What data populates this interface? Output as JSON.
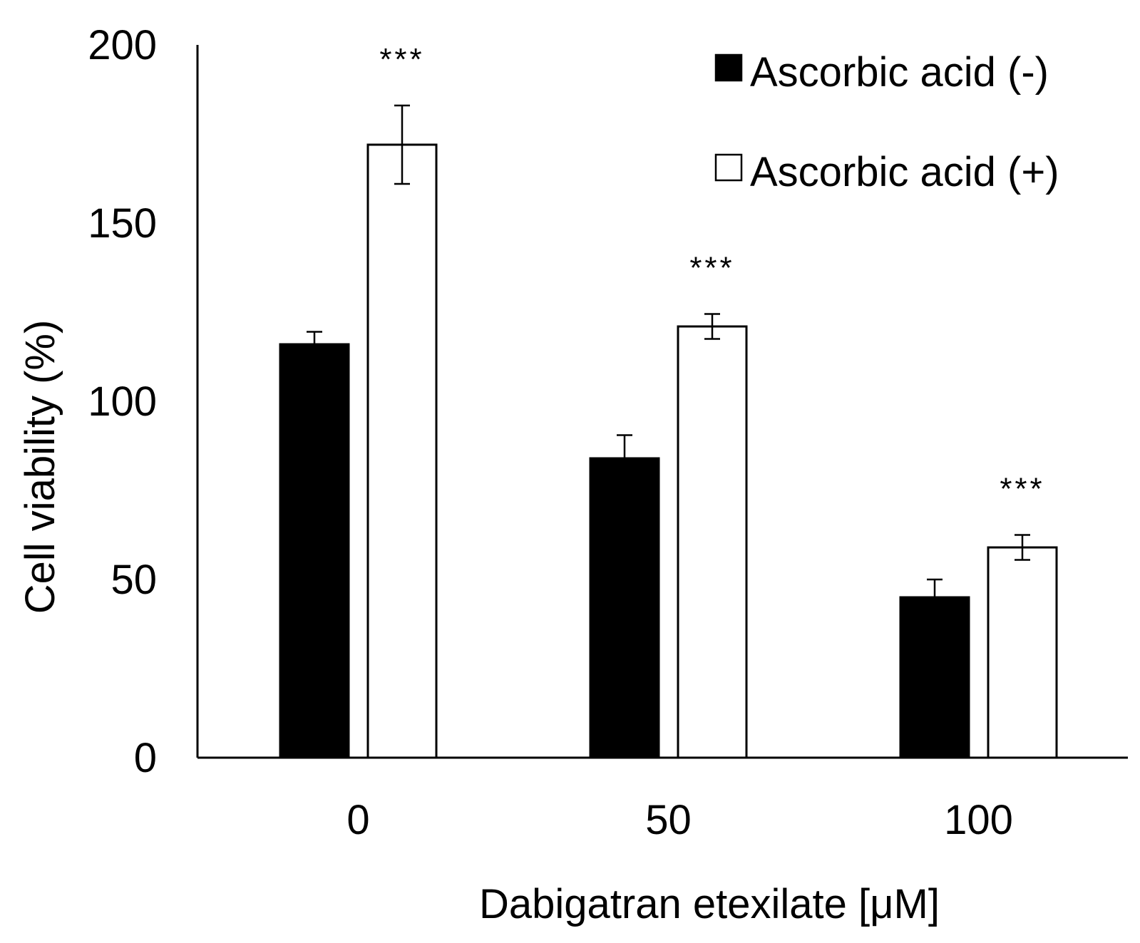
{
  "chart_data": {
    "type": "bar",
    "title": "",
    "xlabel": "Dabigatran etexilate [μM]",
    "ylabel": "Cell viability (%)",
    "ylim": [
      0,
      200
    ],
    "yticks": [
      0,
      50,
      100,
      150,
      200
    ],
    "grid": false,
    "legend_position": "top-right",
    "categories": [
      "0",
      "50",
      "100"
    ],
    "series": [
      {
        "name": "Ascorbic acid (-)",
        "fill": "#000000",
        "values": [
          116,
          84,
          45
        ],
        "errors": [
          3.5,
          6.5,
          5
        ]
      },
      {
        "name": "Ascorbic acid (+)",
        "fill": "#ffffff",
        "values": [
          172,
          121,
          59
        ],
        "errors": [
          11,
          3.5,
          3.5
        ]
      }
    ],
    "annotations": [
      {
        "category_index": 0,
        "series_index": 1,
        "text": "***"
      },
      {
        "category_index": 1,
        "series_index": 1,
        "text": "***"
      },
      {
        "category_index": 2,
        "series_index": 1,
        "text": "***"
      }
    ]
  },
  "colors": {
    "axis": "#000000",
    "bar_stroke": "#000000"
  }
}
